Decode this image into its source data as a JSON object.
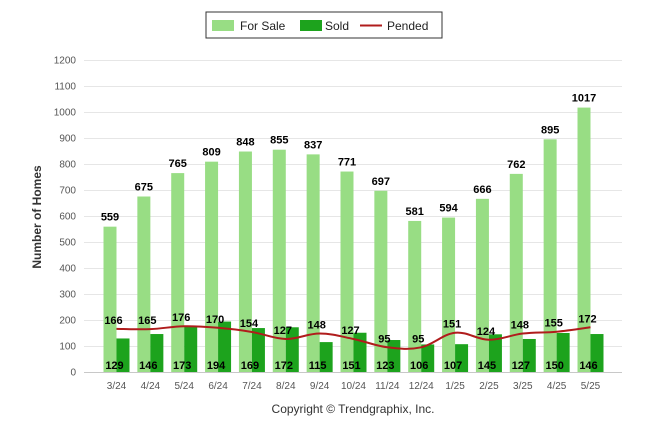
{
  "chart_data": {
    "type": "bar",
    "ylabel": "Number of Homes",
    "xlabel": "",
    "ylim": [
      0,
      1200
    ],
    "yticks": [
      0,
      100,
      200,
      300,
      400,
      500,
      600,
      700,
      800,
      900,
      1000,
      1100,
      1200
    ],
    "grid": true,
    "legend_position": "top-center",
    "categories": [
      "3/24",
      "4/24",
      "5/24",
      "6/24",
      "7/24",
      "8/24",
      "9/24",
      "10/24",
      "11/24",
      "12/24",
      "1/25",
      "2/25",
      "3/25",
      "4/25",
      "5/25"
    ],
    "series": [
      {
        "name": "For Sale",
        "type": "bar",
        "color": "#98DD84",
        "values": [
          559,
          675,
          765,
          809,
          848,
          855,
          837,
          771,
          697,
          581,
          594,
          666,
          762,
          895,
          1017
        ]
      },
      {
        "name": "Sold",
        "type": "bar",
        "color": "#1DA31D",
        "values": [
          129,
          146,
          173,
          194,
          169,
          172,
          115,
          151,
          123,
          106,
          107,
          145,
          127,
          150,
          146
        ]
      },
      {
        "name": "Pended",
        "type": "line",
        "color": "#B01C1C",
        "values": [
          166,
          165,
          176,
          170,
          154,
          127,
          148,
          127,
          95,
          95,
          151,
          124,
          148,
          155,
          172
        ]
      }
    ]
  },
  "copyright": "Copyright © Trendgraphix, Inc."
}
